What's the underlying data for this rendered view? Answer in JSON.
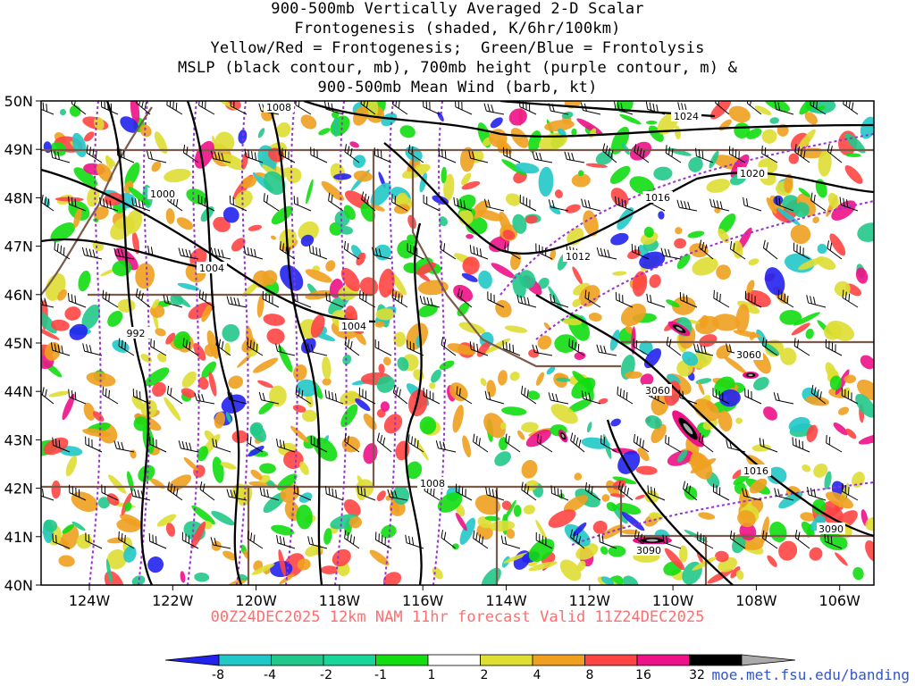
{
  "title_lines": [
    "900-500mb Vertically Averaged 2-D Scalar",
    "Frontogenesis (shaded, K/6hr/100km)",
    "Yellow/Red = Frontogenesis;  Green/Blue = Frontolysis",
    "MSLP (black contour, mb), 700mb height (purple contour, m) &",
    "900-500mb Mean Wind (barb, kt)"
  ],
  "map": {
    "lat_labels": [
      "50N",
      "49N",
      "48N",
      "47N",
      "46N",
      "45N",
      "44N",
      "43N",
      "42N",
      "41N",
      "40N"
    ],
    "lon_labels": [
      "124W",
      "122W",
      "120W",
      "118W",
      "116W",
      "114W",
      "112W",
      "110W",
      "108W",
      "106W"
    ],
    "mslp_labels": [
      "1008",
      "1024",
      "1020",
      "1016",
      "1000",
      "1004",
      "1012",
      "992",
      "1004",
      "1008",
      "1016"
    ],
    "height_labels": [
      "3060",
      "3060",
      "3090",
      "3090"
    ]
  },
  "colorbar": {
    "labels": [
      "-8",
      "-4",
      "-2",
      "-1",
      "1",
      "2",
      "4",
      "8",
      "16",
      "32"
    ],
    "colors": [
      "#2222ee",
      "#22c8c8",
      "#22c88a",
      "#18d69a",
      "#11dd11",
      "#ffffff",
      "#dede33",
      "#f0a020",
      "#ff4444",
      "#ee1188",
      "#000000",
      "#aaaaaa"
    ]
  },
  "footer": "00Z24DEC2025 12km NAM 11hr forecast Valid 11Z24DEC2025",
  "credit": "moe.met.fsu.edu/banding"
}
